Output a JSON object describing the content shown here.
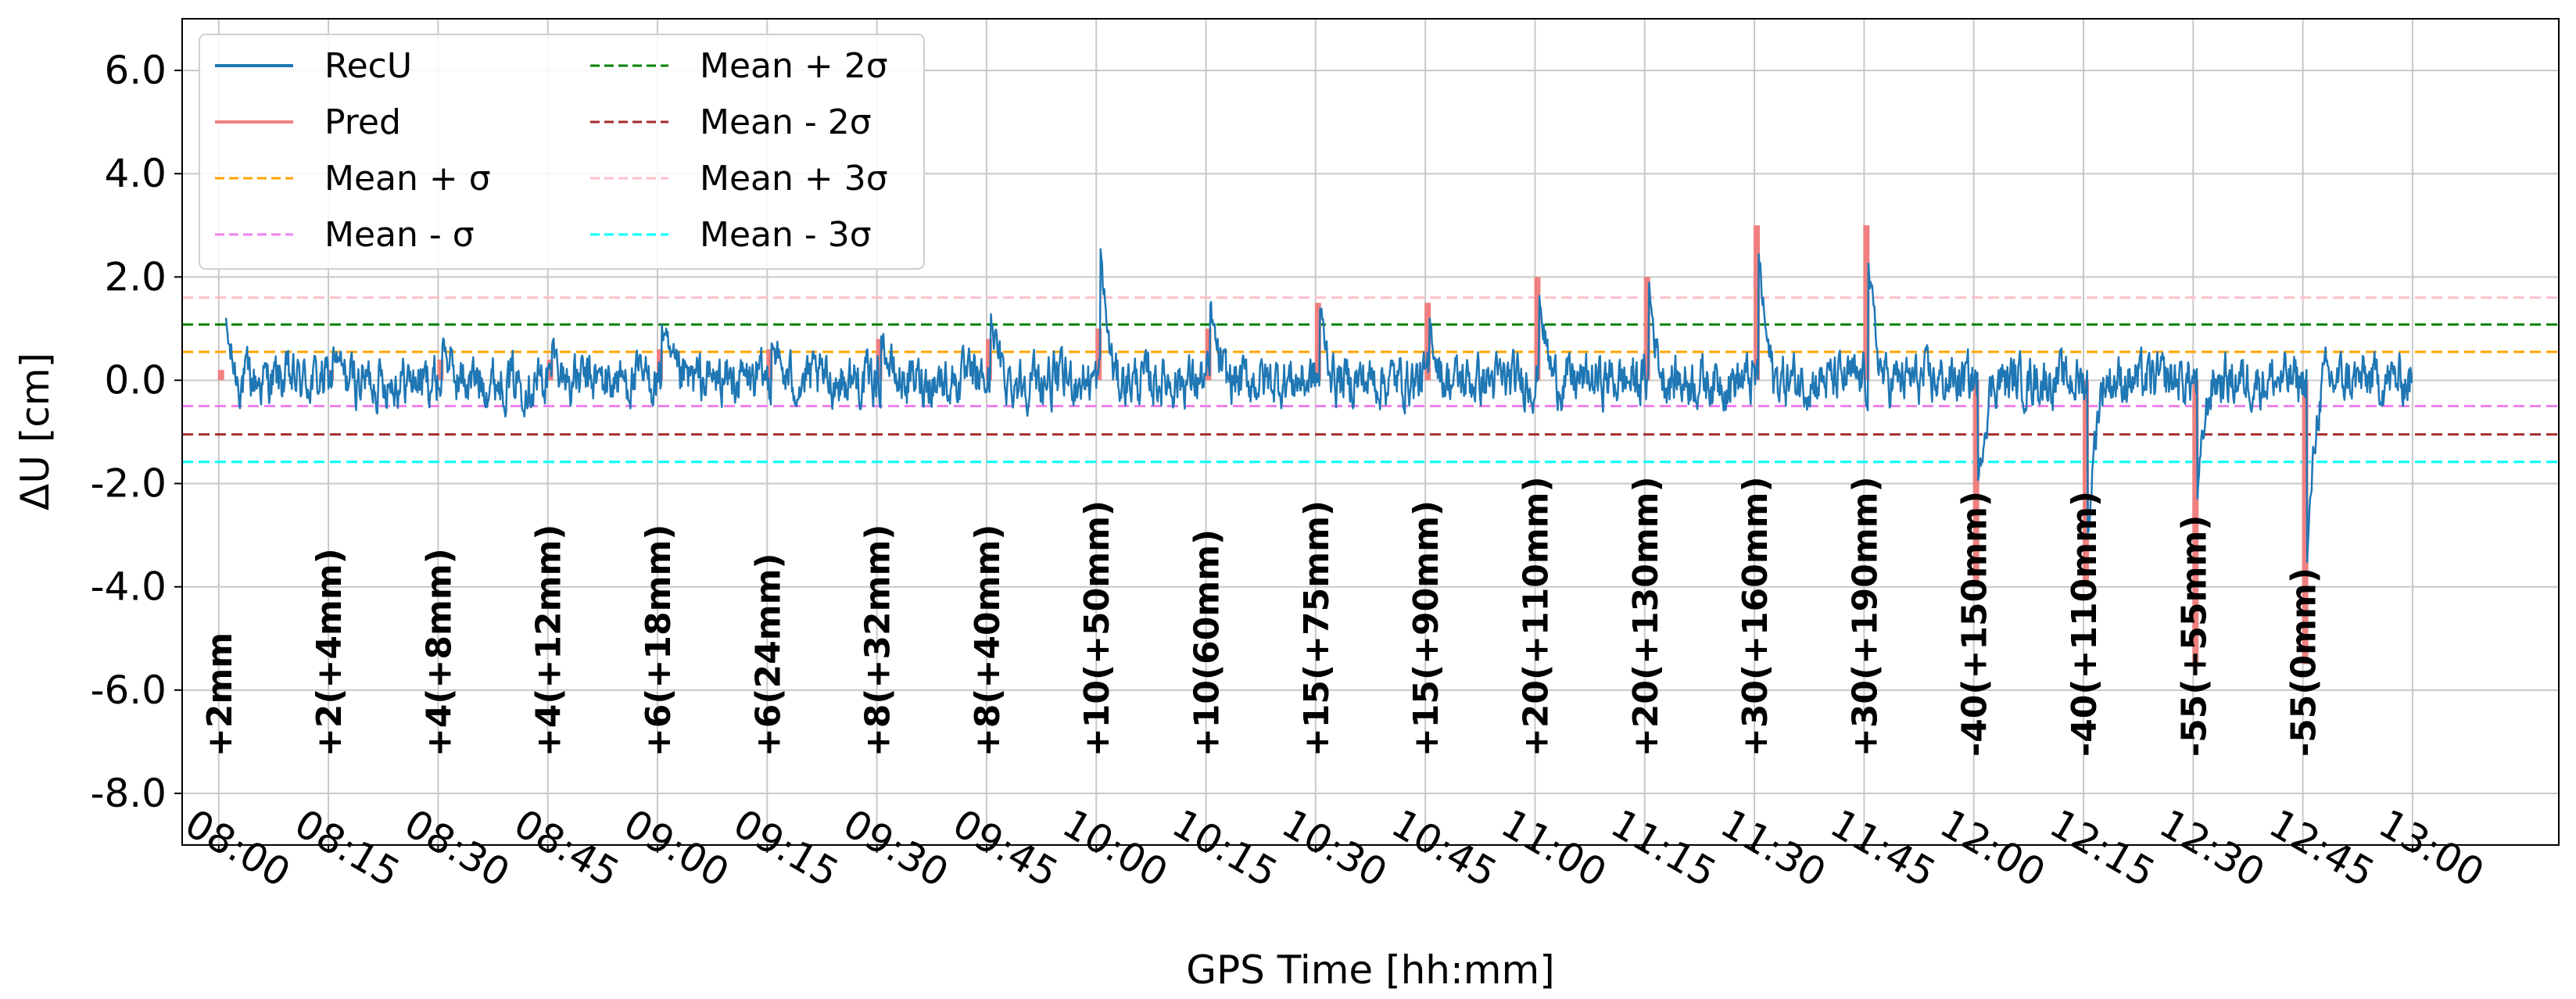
{
  "chart_data": {
    "type": "line",
    "xlabel": "GPS Time [hh:mm]",
    "ylabel": "ΔU [cm]",
    "x_ticks": [
      "08:00",
      "08:15",
      "08:30",
      "08:45",
      "09:00",
      "09:15",
      "09:30",
      "09:45",
      "10:00",
      "10:15",
      "10:30",
      "10:45",
      "11:00",
      "11:15",
      "11:30",
      "11:45",
      "12:00",
      "12:15",
      "12:30",
      "12:45",
      "13:00"
    ],
    "y_ticks": [
      6.0,
      4.0,
      2.0,
      0.0,
      -2.0,
      -4.0,
      -6.0,
      -8.0
    ],
    "y_tick_labels": [
      "6.0",
      "4.0",
      "2.0",
      "0.0",
      "-2.0",
      "-4.0",
      "-6.0",
      "-8.0"
    ],
    "xlim": [
      "07:55",
      "13:20"
    ],
    "ylim": [
      -9.0,
      7.0
    ],
    "grid": true,
    "legend_position": "top-left",
    "legend": [
      {
        "label": "RecU",
        "color": "#1f77b4",
        "style": "solid"
      },
      {
        "label": "Pred",
        "color": "#f08080",
        "style": "solid"
      },
      {
        "label": "Mean + σ",
        "color": "#ffa500",
        "style": "dashed"
      },
      {
        "label": "Mean - σ",
        "color": "#ee82ee",
        "style": "dashed"
      },
      {
        "label": "Mean + 2σ",
        "color": "#008000",
        "style": "dashed"
      },
      {
        "label": "Mean - 2σ",
        "color": "#a52a2a",
        "style": "dashed"
      },
      {
        "label": "Mean + 3σ",
        "color": "#ffc0cb",
        "style": "dashed"
      },
      {
        "label": "Mean - 3σ",
        "color": "#00ffff",
        "style": "dashed"
      }
    ],
    "reference_lines": [
      {
        "label": "Mean + σ",
        "y": 0.55
      },
      {
        "label": "Mean - σ",
        "y": -0.5
      },
      {
        "label": "Mean + 2σ",
        "y": 1.08
      },
      {
        "label": "Mean - 2σ",
        "y": -1.05
      },
      {
        "label": "Mean + 3σ",
        "y": 1.6
      },
      {
        "label": "Mean - 3σ",
        "y": -1.58
      }
    ],
    "events": [
      {
        "time": "08:00",
        "label": "+2mm",
        "pred": 0.2,
        "rec_extreme": 1.4
      },
      {
        "time": "08:15",
        "label": "+2(+4mm)",
        "pred": 0.2,
        "rec_extreme": 0.6
      },
      {
        "time": "08:30",
        "label": "+4(+8mm)",
        "pred": 0.4,
        "rec_extreme": 0.8
      },
      {
        "time": "08:45",
        "label": "+4(+12mm)",
        "pred": 0.4,
        "rec_extreme": 0.7
      },
      {
        "time": "09:00",
        "label": "+6(+18mm)",
        "pred": 0.6,
        "rec_extreme": 1.1
      },
      {
        "time": "09:15",
        "label": "+6(24mm)",
        "pred": 0.6,
        "rec_extreme": 0.9
      },
      {
        "time": "09:30",
        "label": "+8(+32mm)",
        "pred": 0.8,
        "rec_extreme": 0.9
      },
      {
        "time": "09:45",
        "label": "+8(+40mm)",
        "pred": 0.8,
        "rec_extreme": 1.3
      },
      {
        "time": "10:00",
        "label": "+10(+50mm)",
        "pred": 1.0,
        "rec_extreme": 2.5
      },
      {
        "time": "10:15",
        "label": "+10(60mm)",
        "pred": 1.0,
        "rec_extreme": 1.4
      },
      {
        "time": "10:30",
        "label": "+15(+75mm)",
        "pred": 1.5,
        "rec_extreme": 1.4
      },
      {
        "time": "10:45",
        "label": "+15(+90mm)",
        "pred": 1.5,
        "rec_extreme": 1.1
      },
      {
        "time": "11:00",
        "label": "+20(+110mm)",
        "pred": 2.0,
        "rec_extreme": 1.7
      },
      {
        "time": "11:15",
        "label": "+20(+130mm)",
        "pred": 2.0,
        "rec_extreme": 1.8
      },
      {
        "time": "11:30",
        "label": "+30(+160mm)",
        "pred": 3.0,
        "rec_extreme": 2.5
      },
      {
        "time": "11:45",
        "label": "+30(+190mm)",
        "pred": 3.0,
        "rec_extreme": 2.3
      },
      {
        "time": "12:00",
        "label": "-40(+150mm)",
        "pred": -4.0,
        "rec_extreme": -2.1
      },
      {
        "time": "12:15",
        "label": "-40(+110mm)",
        "pred": -4.0,
        "rec_extreme": -3.1
      },
      {
        "time": "12:30",
        "label": "-55(+55mm)",
        "pred": -5.5,
        "rec_extreme": -2.3
      },
      {
        "time": "12:45",
        "label": "-55(0mm)",
        "pred": -5.5,
        "rec_extreme": -3.5
      }
    ],
    "recu_noise_amplitude": 0.35
  }
}
